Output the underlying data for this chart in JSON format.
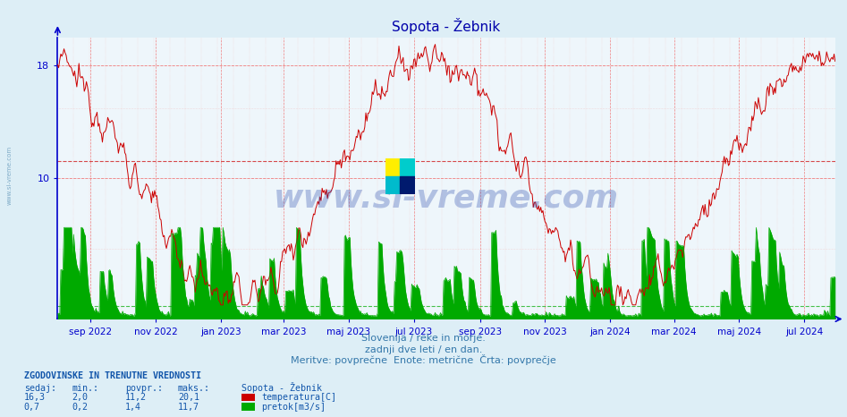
{
  "title": "Sopota - Žebnik",
  "xlabel_text1": "Slovenija / reke in morje.",
  "xlabel_text2": "zadnji dve leti / en dan.",
  "xlabel_text3": "Meritve: povprečne  Enote: metrične  Črta: povprečje",
  "watermark": "www.si-vreme.com",
  "background_color": "#ddeef6",
  "plot_bg_color": "#eef6fb",
  "temp_color": "#cc0000",
  "flow_color": "#00aa00",
  "axis_color": "#0000cc",
  "title_color": "#0000aa",
  "text_color": "#3377aa",
  "info_text_color": "#1155aa",
  "ylim": [
    0,
    20
  ],
  "yticks": [
    10,
    18
  ],
  "n_points": 730,
  "avg_temp": 11.2,
  "avg_flow_display": 0.9,
  "month_labels": [
    "sep 2022",
    "nov 2022",
    "jan 2023",
    "mar 2023",
    "maj 2023",
    "jul 2023",
    "sep 2023",
    "nov 2023",
    "jan 2024",
    "mar 2024",
    "maj 2024",
    "jul 2024"
  ],
  "month_positions": [
    31,
    92,
    153,
    212,
    273,
    334,
    396,
    457,
    518,
    578,
    639,
    700
  ],
  "info_title": "ZGODOVINSKE IN TRENUTNE VREDNOSTI",
  "info_headers": [
    "sedaj:",
    "min.:",
    "povpr.:",
    "maks.:"
  ],
  "info_temp": [
    "16,3",
    "2,0",
    "11,2",
    "20,1"
  ],
  "info_flow": [
    "0,7",
    "0,2",
    "1,4",
    "11,7"
  ],
  "station_label": "Sopota - Žebnik",
  "temp_label": "temperatura[C]",
  "flow_label": "pretok[m3/s]"
}
